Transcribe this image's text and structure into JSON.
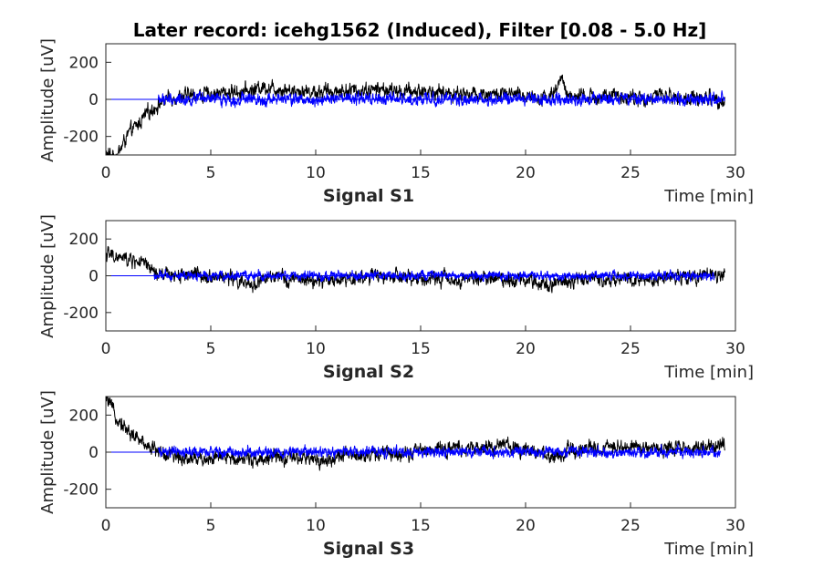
{
  "figure": {
    "title": "Later record: icehg1562 (Induced), Filter [0.08 - 5.0 Hz]"
  },
  "chart_data": [
    {
      "type": "line",
      "panel_label": "Signal S1",
      "title": "Later record: icehg1562 (Induced), Filter [0.08 - 5.0 Hz]",
      "xlabel": "Time [min]",
      "ylabel": "Amplitude [uV]",
      "xlim": [
        0,
        30
      ],
      "ylim": [
        -300,
        300
      ],
      "xticks": [
        0,
        5,
        10,
        15,
        20,
        25,
        30
      ],
      "yticks": [
        -200,
        0,
        200
      ],
      "grid": false,
      "series": [
        {
          "color": "#000000",
          "x": [
            0,
            0.3,
            0.6,
            0.9,
            1.2,
            1.5,
            2.0,
            2.5,
            3.0,
            4.0,
            5.0,
            6.0,
            7.0,
            7.5,
            8.0,
            9.0,
            10.0,
            11.0,
            12.0,
            13.0,
            14.0,
            15.0,
            16.0,
            17.0,
            18.0,
            19.0,
            20.0,
            21.0,
            21.5,
            21.7,
            22.0,
            23.0,
            24.0,
            25.0,
            25.8,
            26.5,
            27.0,
            28.0,
            29.0,
            29.5
          ],
          "values": [
            -300,
            -300,
            -290,
            -220,
            -170,
            -140,
            -70,
            -30,
            10,
            20,
            30,
            40,
            50,
            70,
            60,
            50,
            40,
            45,
            50,
            55,
            40,
            45,
            35,
            30,
            30,
            25,
            20,
            10,
            50,
            130,
            20,
            10,
            15,
            10,
            0,
            30,
            10,
            5,
            10,
            -10
          ],
          "amplitude": 25
        },
        {
          "color": "#0000ff",
          "x": [
            2.5,
            5,
            7,
            8,
            10,
            12,
            15,
            20,
            25,
            29.5
          ],
          "values": [
            0,
            0,
            0,
            0,
            0,
            0,
            0,
            0,
            0,
            0
          ],
          "amplitude": 20
        }
      ]
    },
    {
      "type": "line",
      "panel_label": "Signal S2",
      "xlabel": "Time [min]",
      "ylabel": "Amplitude [uV]",
      "xlim": [
        0,
        30
      ],
      "ylim": [
        -300,
        300
      ],
      "xticks": [
        0,
        5,
        10,
        15,
        20,
        25,
        30
      ],
      "yticks": [
        -200,
        0,
        200
      ],
      "grid": false,
      "series": [
        {
          "color": "#000000",
          "x": [
            0,
            0.5,
            1.0,
            1.5,
            2.0,
            2.5,
            3.0,
            4.0,
            5.0,
            6.0,
            6.8,
            7.5,
            8.0,
            9.0,
            10.0,
            11.0,
            12.0,
            13.0,
            14.0,
            15.0,
            16.0,
            17.0,
            18.0,
            19.0,
            20.0,
            21.0,
            22.0,
            23.0,
            24.0,
            25.0,
            26.0,
            27.0,
            28.0,
            29.0,
            29.5
          ],
          "values": [
            120,
            100,
            90,
            80,
            50,
            0,
            5,
            10,
            0,
            -10,
            -60,
            -20,
            -10,
            -20,
            -30,
            -20,
            -10,
            0,
            -10,
            -20,
            -15,
            -20,
            -10,
            -15,
            -20,
            -40,
            -30,
            -10,
            -20,
            -10,
            -15,
            -10,
            -5,
            -5,
            10
          ],
          "amplitude": 25
        },
        {
          "color": "#0000ff",
          "x": [
            2.3,
            5,
            8,
            10,
            15,
            20,
            25,
            29
          ],
          "values": [
            0,
            0,
            0,
            0,
            0,
            0,
            0,
            0
          ],
          "amplitude": 15
        }
      ]
    },
    {
      "type": "line",
      "panel_label": "Signal S3",
      "xlabel": "Time [min]",
      "ylabel": "Amplitude [uV]",
      "xlim": [
        0,
        30
      ],
      "ylim": [
        -300,
        300
      ],
      "xticks": [
        0,
        5,
        10,
        15,
        20,
        25,
        30
      ],
      "yticks": [
        -200,
        0,
        200
      ],
      "grid": false,
      "series": [
        {
          "color": "#000000",
          "x": [
            0,
            0.3,
            0.6,
            1.0,
            1.5,
            2.0,
            2.5,
            3.0,
            4.0,
            5.0,
            6.0,
            7.0,
            8.0,
            9.0,
            10.0,
            10.5,
            11.0,
            12.0,
            13.0,
            14.0,
            15.0,
            16.0,
            17.0,
            18.0,
            19.0,
            20.0,
            21.0,
            21.5,
            22.0,
            23.0,
            24.0,
            25.0,
            26.0,
            27.0,
            28.0,
            29.0,
            29.5
          ],
          "values": [
            300,
            230,
            180,
            120,
            70,
            40,
            5,
            -20,
            -30,
            -35,
            -30,
            -35,
            -30,
            -35,
            -40,
            -50,
            -25,
            -15,
            -10,
            -5,
            10,
            20,
            15,
            20,
            40,
            15,
            -10,
            -40,
            5,
            15,
            25,
            35,
            20,
            25,
            20,
            25,
            40
          ],
          "amplitude": 25
        },
        {
          "color": "#0000ff",
          "x": [
            2.5,
            5,
            8,
            10,
            15,
            20,
            25,
            29.3
          ],
          "values": [
            0,
            0,
            0,
            0,
            0,
            0,
            0,
            0
          ],
          "amplitude": 18
        }
      ]
    }
  ]
}
